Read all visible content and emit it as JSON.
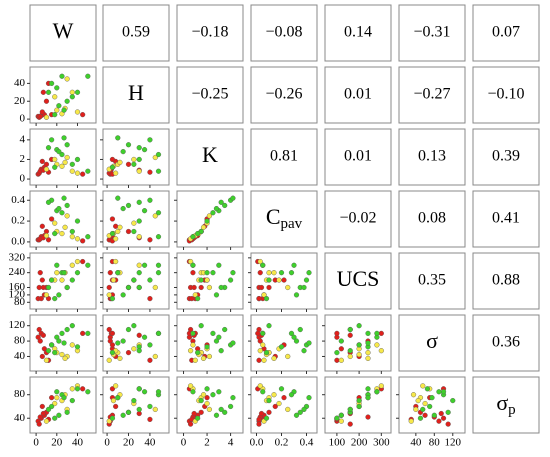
{
  "chart_data": {
    "type": "scatter-matrix",
    "variables": [
      {
        "label": "W",
        "lim": [
          -3,
          55
        ],
        "ticks": [
          0,
          20,
          40
        ]
      },
      {
        "label": "H",
        "lim": [
          -1,
          55
        ],
        "ticks": [
          0,
          20,
          40
        ]
      },
      {
        "label": "K",
        "lim": [
          -0.3,
          4.8
        ],
        "ticks": [
          0,
          2,
          4
        ]
      },
      {
        "label": "C",
        "subscript": "pav",
        "lim": [
          -0.02,
          0.46
        ],
        "ticks": [
          {
            "value": 0,
            "label": "0.0"
          },
          {
            "value": 0.2,
            "label": "0.2"
          },
          {
            "value": 0.4,
            "label": "0.4"
          }
        ]
      },
      {
        "label": "UCS",
        "lim": [
          60,
          330
        ],
        "ticks": [
          80,
          120,
          160,
          240,
          320
        ],
        "xticks": [
          100,
          200,
          300
        ]
      },
      {
        "label": "σ",
        "lim": [
          10,
          140
        ],
        "ticks": [
          40,
          80,
          120
        ]
      },
      {
        "label": "σ",
        "subscript": "p",
        "lim": [
          20,
          105
        ],
        "ticks": [
          40,
          80
        ],
        "xticks": [
          40,
          80,
          120
        ]
      }
    ],
    "correlations": [
      [
        "0.59",
        "−0.18",
        "−0.08",
        "0.14",
        "−0.31",
        "0.07"
      ],
      [
        "−0.25",
        "−0.26",
        "0.01",
        "−0.27",
        "−0.10"
      ],
      [
        "0.81",
        "0.01",
        "0.13",
        "0.39"
      ],
      [
        "−0.02",
        "0.08",
        "0.41"
      ],
      [
        "0.35",
        "0.88"
      ],
      [
        "0.36"
      ]
    ],
    "groups": [
      {
        "color": "#e0201c",
        "samples": [
          [
            2,
            3,
            0.5,
            0.02,
            100,
            90,
            35
          ],
          [
            5,
            4,
            1.0,
            0.05,
            100,
            100,
            40
          ],
          [
            8,
            5,
            1.2,
            0.06,
            120,
            60,
            45
          ],
          [
            3,
            2,
            0.6,
            0.02,
            160,
            110,
            30
          ],
          [
            10,
            20,
            1.5,
            0.1,
            160,
            50,
            50
          ],
          [
            6,
            8,
            1.8,
            0.15,
            200,
            40,
            60
          ],
          [
            4,
            3,
            0.8,
            0.03,
            240,
            80,
            42
          ],
          [
            12,
            40,
            0.7,
            0.02,
            100,
            30,
            38
          ],
          [
            15,
            5,
            2.0,
            0.22,
            200,
            70,
            75
          ],
          [
            7,
            30,
            0.9,
            0.04,
            160,
            95,
            48
          ],
          [
            45,
            5,
            0.5,
            0.01,
            300,
            100,
            90
          ]
        ]
      },
      {
        "color": "#f7e84a",
        "samples": [
          [
            20,
            10,
            1.5,
            0.1,
            240,
            50,
            75
          ],
          [
            25,
            6,
            1.3,
            0.08,
            200,
            45,
            70
          ],
          [
            30,
            45,
            2.2,
            0.25,
            160,
            40,
            55
          ],
          [
            10,
            2,
            1.0,
            0.06,
            120,
            30,
            35
          ],
          [
            35,
            30,
            0.8,
            0.05,
            280,
            70,
            90
          ],
          [
            18,
            25,
            2.0,
            0.18,
            200,
            60,
            65
          ],
          [
            28,
            12,
            1.7,
            0.14,
            240,
            35,
            80
          ],
          [
            40,
            8,
            0.6,
            0.03,
            300,
            55,
            95
          ]
        ]
      },
      {
        "color": "#3fcf2c",
        "samples": [
          [
            20,
            35,
            3.0,
            0.3,
            280,
            90,
            85
          ],
          [
            25,
            48,
            2.5,
            0.28,
            240,
            100,
            80
          ],
          [
            15,
            40,
            4.0,
            0.4,
            200,
            70,
            60
          ],
          [
            30,
            20,
            3.5,
            0.35,
            160,
            110,
            50
          ],
          [
            22,
            15,
            2.8,
            0.32,
            120,
            80,
            45
          ],
          [
            35,
            25,
            1.5,
            0.1,
            200,
            120,
            70
          ],
          [
            40,
            30,
            2.0,
            0.2,
            240,
            65,
            90
          ],
          [
            18,
            5,
            1.2,
            0.08,
            100,
            50,
            40
          ],
          [
            50,
            48,
            0.8,
            0.05,
            280,
            100,
            85
          ],
          [
            27,
            10,
            4.2,
            0.42,
            240,
            75,
            75
          ],
          [
            12,
            30,
            3.2,
            0.38,
            160,
            55,
            55
          ]
        ]
      }
    ]
  }
}
